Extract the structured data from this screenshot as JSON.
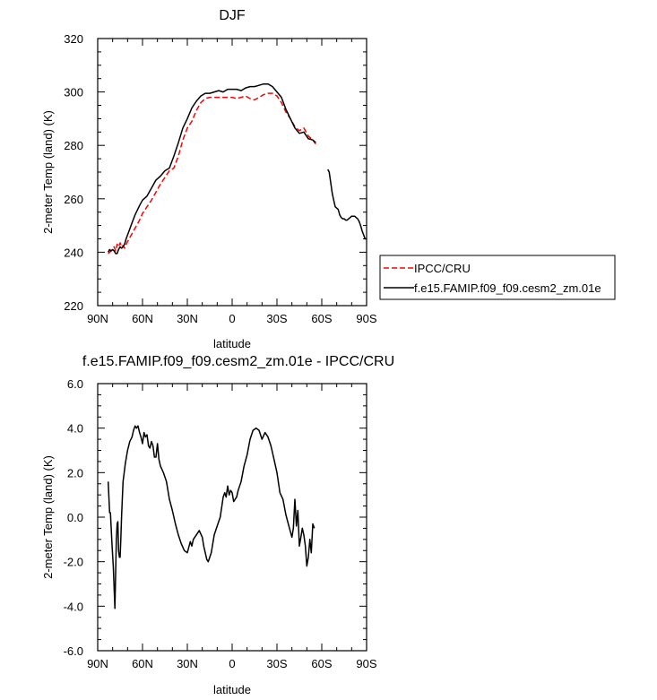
{
  "chart_data": [
    {
      "type": "line",
      "title": "DJF",
      "xlabel": "latitude",
      "ylabel": "2-meter Temp (land) (K)",
      "xlim": [
        90,
        -90
      ],
      "ylim": [
        220,
        320
      ],
      "x_ticks": [
        "90N",
        "60N",
        "30N",
        "0",
        "30S",
        "60S",
        "90S"
      ],
      "y_ticks": [
        "220",
        "240",
        "260",
        "280",
        "300",
        "320"
      ],
      "legend_position": "right",
      "series": [
        {
          "name": "IPCC/CRU",
          "color": "#ff0000",
          "style": "dashed",
          "x": [
            83,
            81,
            79,
            78,
            77,
            76,
            75,
            74,
            73,
            72,
            70,
            68,
            65,
            62,
            60,
            57,
            54,
            51,
            48,
            45,
            42,
            39,
            36,
            33,
            30,
            27,
            24,
            21,
            18,
            15,
            12,
            9,
            6,
            3,
            0,
            -3,
            -6,
            -9,
            -12,
            -15,
            -18,
            -21,
            -24,
            -27,
            -30,
            -33,
            -36,
            -39,
            -42,
            -45,
            -48,
            -51,
            -54,
            -56
          ],
          "y": [
            239.5,
            240.5,
            242,
            240.5,
            243,
            242,
            243.5,
            242,
            242.5,
            241.5,
            244,
            246,
            249,
            252,
            254.5,
            257,
            259.5,
            262.5,
            265.5,
            268,
            270.5,
            271.5,
            276,
            282,
            286.5,
            289,
            293,
            296,
            297.5,
            298,
            298,
            298,
            298,
            298,
            298,
            297.5,
            298,
            298.5,
            297.5,
            297,
            298,
            299,
            299.5,
            299.5,
            298.5,
            296,
            292.5,
            290,
            287,
            285.5,
            286.5,
            283.5,
            282,
            280.5
          ]
        },
        {
          "name": "f.e15.FAMIP.f09_f09.cesm2_zm.01e",
          "color": "#000000",
          "style": "solid",
          "segments": [
            {
              "x": [
                83,
                82,
                81,
                80,
                79,
                78,
                77,
                76,
                75,
                74,
                73,
                72,
                71,
                69,
                67,
                65,
                62,
                60,
                57,
                54,
                51,
                48,
                45,
                42,
                39,
                36,
                33,
                30,
                27,
                24,
                21,
                18,
                15,
                12,
                9,
                6,
                3,
                0,
                -3,
                -6,
                -9,
                -12,
                -15,
                -18,
                -21,
                -24,
                -27,
                -30,
                -33,
                -36,
                -39,
                -42,
                -45,
                -48,
                -51,
                -54,
                -56
              ],
              "y": [
                240,
                241,
                240.5,
                241,
                240.5,
                239.5,
                239.5,
                241,
                242,
                241.5,
                242,
                243,
                245,
                248,
                251,
                254,
                257.5,
                259.5,
                261,
                264,
                267,
                268.5,
                270.5,
                271.5,
                276,
                281,
                286.5,
                290,
                294,
                296.5,
                298.5,
                299.5,
                299.5,
                300,
                300.5,
                300,
                301,
                301,
                301,
                300.5,
                301.5,
                302,
                302,
                302.5,
                303,
                303,
                302,
                300,
                298,
                293.5,
                290,
                286.5,
                284.5,
                285,
                282.5,
                282,
                281
              ]
            },
            {
              "x": [
                -64,
                -65,
                -66,
                -67,
                -68,
                -69,
                -70,
                -71,
                -72,
                -73,
                -74,
                -75,
                -76,
                -77,
                -78,
                -79,
                -80,
                -81,
                -82,
                -83,
                -84,
                -85,
                -86,
                -87,
                -88,
                -89,
                -90
              ],
              "y": [
                271,
                270,
                266,
                262,
                259.5,
                257,
                256.5,
                256,
                254,
                253,
                252.5,
                252.5,
                252,
                252,
                252.5,
                253,
                253.5,
                253.5,
                253.5,
                253,
                252.5,
                251.5,
                250,
                248,
                246.5,
                245,
                245
              ]
            }
          ]
        }
      ]
    },
    {
      "type": "line",
      "title": "f.e15.FAMIP.f09_f09.cesm2_zm.01e - IPCC/CRU",
      "xlabel": "latitude",
      "ylabel": "2-meter Temp (land) (K)",
      "xlim": [
        90,
        -90
      ],
      "ylim": [
        -6,
        6
      ],
      "x_ticks": [
        "90N",
        "60N",
        "30N",
        "0",
        "30S",
        "60S",
        "90S"
      ],
      "y_ticks": [
        "-6.0",
        "-4.0",
        "-2.0",
        "0.0",
        "2.0",
        "4.0",
        "6.0"
      ],
      "series": [
        {
          "color": "#000000",
          "style": "solid",
          "x": [
            83,
            82,
            81.5,
            80.5,
            79.5,
            78.5,
            77.5,
            77,
            76.5,
            76,
            75.5,
            75,
            74.5,
            74,
            73,
            71.5,
            70,
            68.5,
            67,
            66,
            65,
            64,
            63,
            62,
            61,
            60,
            59,
            58,
            57,
            56,
            55,
            54,
            53,
            52,
            51,
            50,
            49,
            48,
            46,
            44,
            42,
            40,
            38,
            36,
            34,
            32,
            30,
            28,
            27,
            26,
            24,
            22,
            20,
            19,
            18,
            17,
            16,
            14,
            12,
            10,
            8,
            6,
            5,
            4,
            3,
            2,
            1,
            0,
            -1,
            -2,
            -3,
            -4,
            -6,
            -8,
            -10,
            -12,
            -14,
            -16,
            -18,
            -20,
            -22,
            -24,
            -26,
            -28,
            -30,
            -32,
            -34,
            -36,
            -38,
            -40,
            -41,
            -42,
            -43,
            -44,
            -45,
            -46,
            -47,
            -48,
            -49,
            -50,
            -51,
            -52,
            -53,
            -54,
            -55
          ],
          "y": [
            1.6,
            0.2,
            0.2,
            -1.1,
            -2.3,
            -4.1,
            -1.0,
            -0.3,
            -0.2,
            -1.5,
            -1.8,
            -1.8,
            -1.0,
            0.1,
            1.6,
            2.4,
            3.0,
            3.4,
            3.6,
            3.9,
            4.1,
            4.0,
            4.1,
            3.8,
            3.6,
            3.3,
            3.8,
            3.6,
            3.7,
            3.2,
            3.1,
            3.4,
            3.2,
            2.7,
            2.7,
            3.3,
            2.6,
            2.3,
            2.0,
            1.6,
            0.8,
            0.3,
            -0.3,
            -0.8,
            -1.2,
            -1.5,
            -1.6,
            -1.1,
            -1.3,
            -1.0,
            -0.8,
            -0.6,
            -0.9,
            -1.3,
            -1.6,
            -1.9,
            -2.0,
            -1.6,
            -0.8,
            -0.4,
            0.0,
            0.9,
            1.1,
            0.9,
            1.4,
            1.0,
            1.2,
            1.1,
            0.7,
            0.8,
            0.9,
            1.2,
            1.6,
            2.3,
            2.8,
            3.5,
            3.9,
            4.0,
            3.9,
            3.5,
            3.8,
            3.6,
            3.2,
            2.6,
            2.0,
            1.1,
            0.8,
            0.1,
            -0.4,
            -0.9,
            -0.5,
            0.8,
            -0.4,
            0.3,
            -1.3,
            -0.9,
            -0.5,
            -0.8,
            -1.3,
            -2.2,
            -1.8,
            -1.0,
            -1.6,
            -0.3,
            -0.5
          ]
        }
      ]
    }
  ]
}
